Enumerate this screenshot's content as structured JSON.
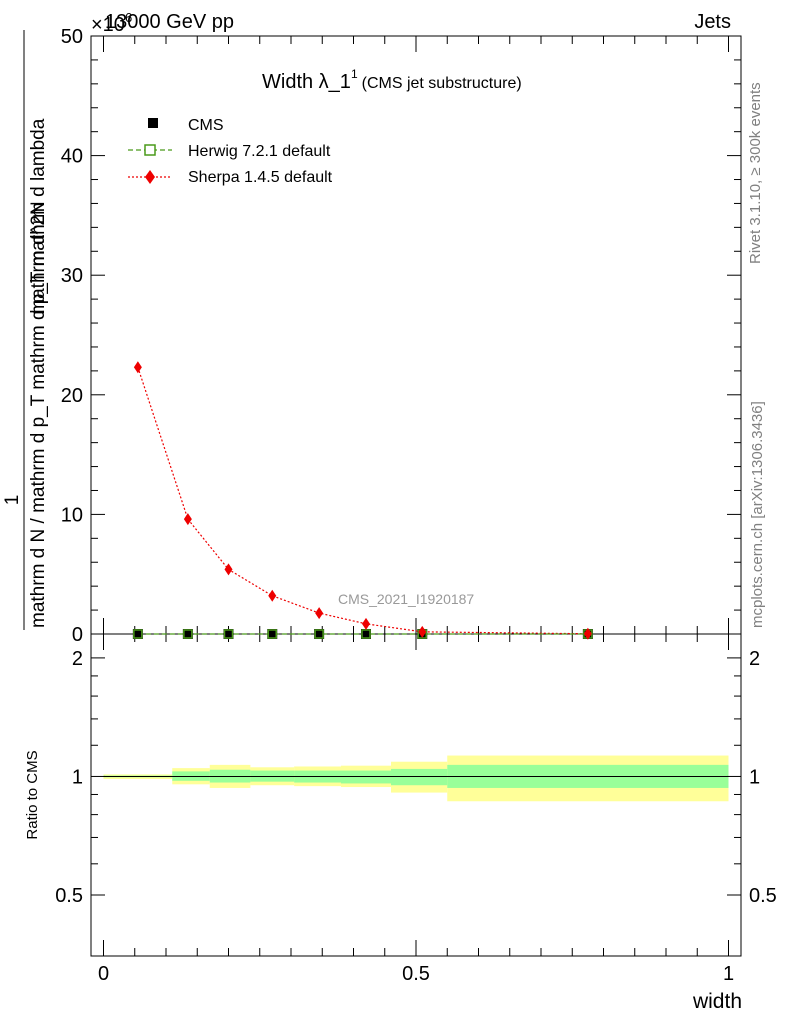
{
  "header": {
    "energy_label": "13000 GeV pp",
    "category_label": "Jets",
    "exponent_label": "×10",
    "exponent_power": "6"
  },
  "side_labels": {
    "rivet": "Rivet 3.1.10, ≥ 300k events",
    "mcplots": "mcplots.cern.ch [arXiv:1306.3436]"
  },
  "main_title": {
    "text": "Width λ_1",
    "superscript": "1",
    "subtitle": "(CMS jet substructure)"
  },
  "watermark": "CMS_2021_I1920187",
  "legend": {
    "items": [
      {
        "label": "CMS",
        "color": "#000000",
        "style": "square"
      },
      {
        "label": "Herwig 7.2.1 default",
        "color": "#4a9a1a",
        "style": "open-square-dashed"
      },
      {
        "label": "Sherpa 1.4.5 default",
        "color": "#ee0000",
        "style": "diamond-dotted"
      }
    ]
  },
  "y_axis_label_top": "1",
  "y_axis_label_bottom": "mathrm d N / mathrm d p_T mathrm d p_T mathrm d lambda",
  "y_axis_label_numerator": "mathrm d^2N",
  "ratio_axis_label": "Ratio to CMS",
  "x_axis_label": "width",
  "colors": {
    "sherpa": "#ee0000",
    "herwig": "#4a9a1a",
    "cms": "#000000",
    "band_outer": "#ffff99",
    "band_inner": "#99ff99"
  },
  "chart_data": [
    {
      "type": "line",
      "title": "Width λ_1^1",
      "xlabel": "",
      "ylabel": "1 / (mathrm d N / mathrm d p_T mathrm d p_T mathrm d lambda) · mathrm d^2N",
      "xlim": [
        -0.02,
        1.02
      ],
      "ylim": [
        0,
        50
      ],
      "y_scale_factor": "×10^6",
      "y_ticks": [
        0,
        10,
        20,
        30,
        40,
        50
      ],
      "series": [
        {
          "name": "CMS",
          "x": [
            0.055,
            0.135,
            0.2,
            0.27,
            0.345,
            0.42,
            0.51,
            0.775
          ],
          "values": [
            0,
            0,
            0,
            0,
            0,
            0,
            0,
            0
          ]
        },
        {
          "name": "Herwig 7.2.1 default",
          "x": [
            0.055,
            0.135,
            0.2,
            0.27,
            0.345,
            0.42,
            0.51,
            0.775
          ],
          "values": [
            0,
            0,
            0,
            0,
            0,
            0,
            0,
            0
          ]
        },
        {
          "name": "Sherpa 1.4.5 default",
          "x": [
            0.055,
            0.135,
            0.2,
            0.27,
            0.345,
            0.42,
            0.51,
            0.775
          ],
          "values": [
            22.3,
            9.6,
            5.4,
            3.2,
            1.75,
            0.85,
            0.18,
            0.02
          ]
        }
      ]
    },
    {
      "type": "area",
      "title": "",
      "xlabel": "width",
      "ylabel": "Ratio to CMS",
      "xlim": [
        -0.02,
        1.02
      ],
      "ylim": [
        0.35,
        2.3
      ],
      "x_ticks": [
        0,
        0.5,
        1
      ],
      "y_ticks": [
        0.5,
        1,
        2
      ],
      "bins": [
        {
          "x0": 0.0,
          "x1": 0.11,
          "inner": [
            0.995,
            1.005
          ],
          "outer": [
            0.985,
            1.012
          ]
        },
        {
          "x0": 0.11,
          "x1": 0.17,
          "inner": [
            0.975,
            1.03
          ],
          "outer": [
            0.955,
            1.05
          ]
        },
        {
          "x0": 0.17,
          "x1": 0.235,
          "inner": [
            0.965,
            1.04
          ],
          "outer": [
            0.935,
            1.07
          ]
        },
        {
          "x0": 0.235,
          "x1": 0.305,
          "inner": [
            0.97,
            1.035
          ],
          "outer": [
            0.95,
            1.055
          ]
        },
        {
          "x0": 0.305,
          "x1": 0.38,
          "inner": [
            0.965,
            1.035
          ],
          "outer": [
            0.945,
            1.06
          ]
        },
        {
          "x0": 0.38,
          "x1": 0.46,
          "inner": [
            0.96,
            1.035
          ],
          "outer": [
            0.94,
            1.065
          ]
        },
        {
          "x0": 0.46,
          "x1": 0.55,
          "inner": [
            0.95,
            1.045
          ],
          "outer": [
            0.91,
            1.09
          ]
        },
        {
          "x0": 0.55,
          "x1": 1.0,
          "inner": [
            0.935,
            1.07
          ],
          "outer": [
            0.865,
            1.13
          ]
        }
      ],
      "reference_line": 1
    }
  ]
}
